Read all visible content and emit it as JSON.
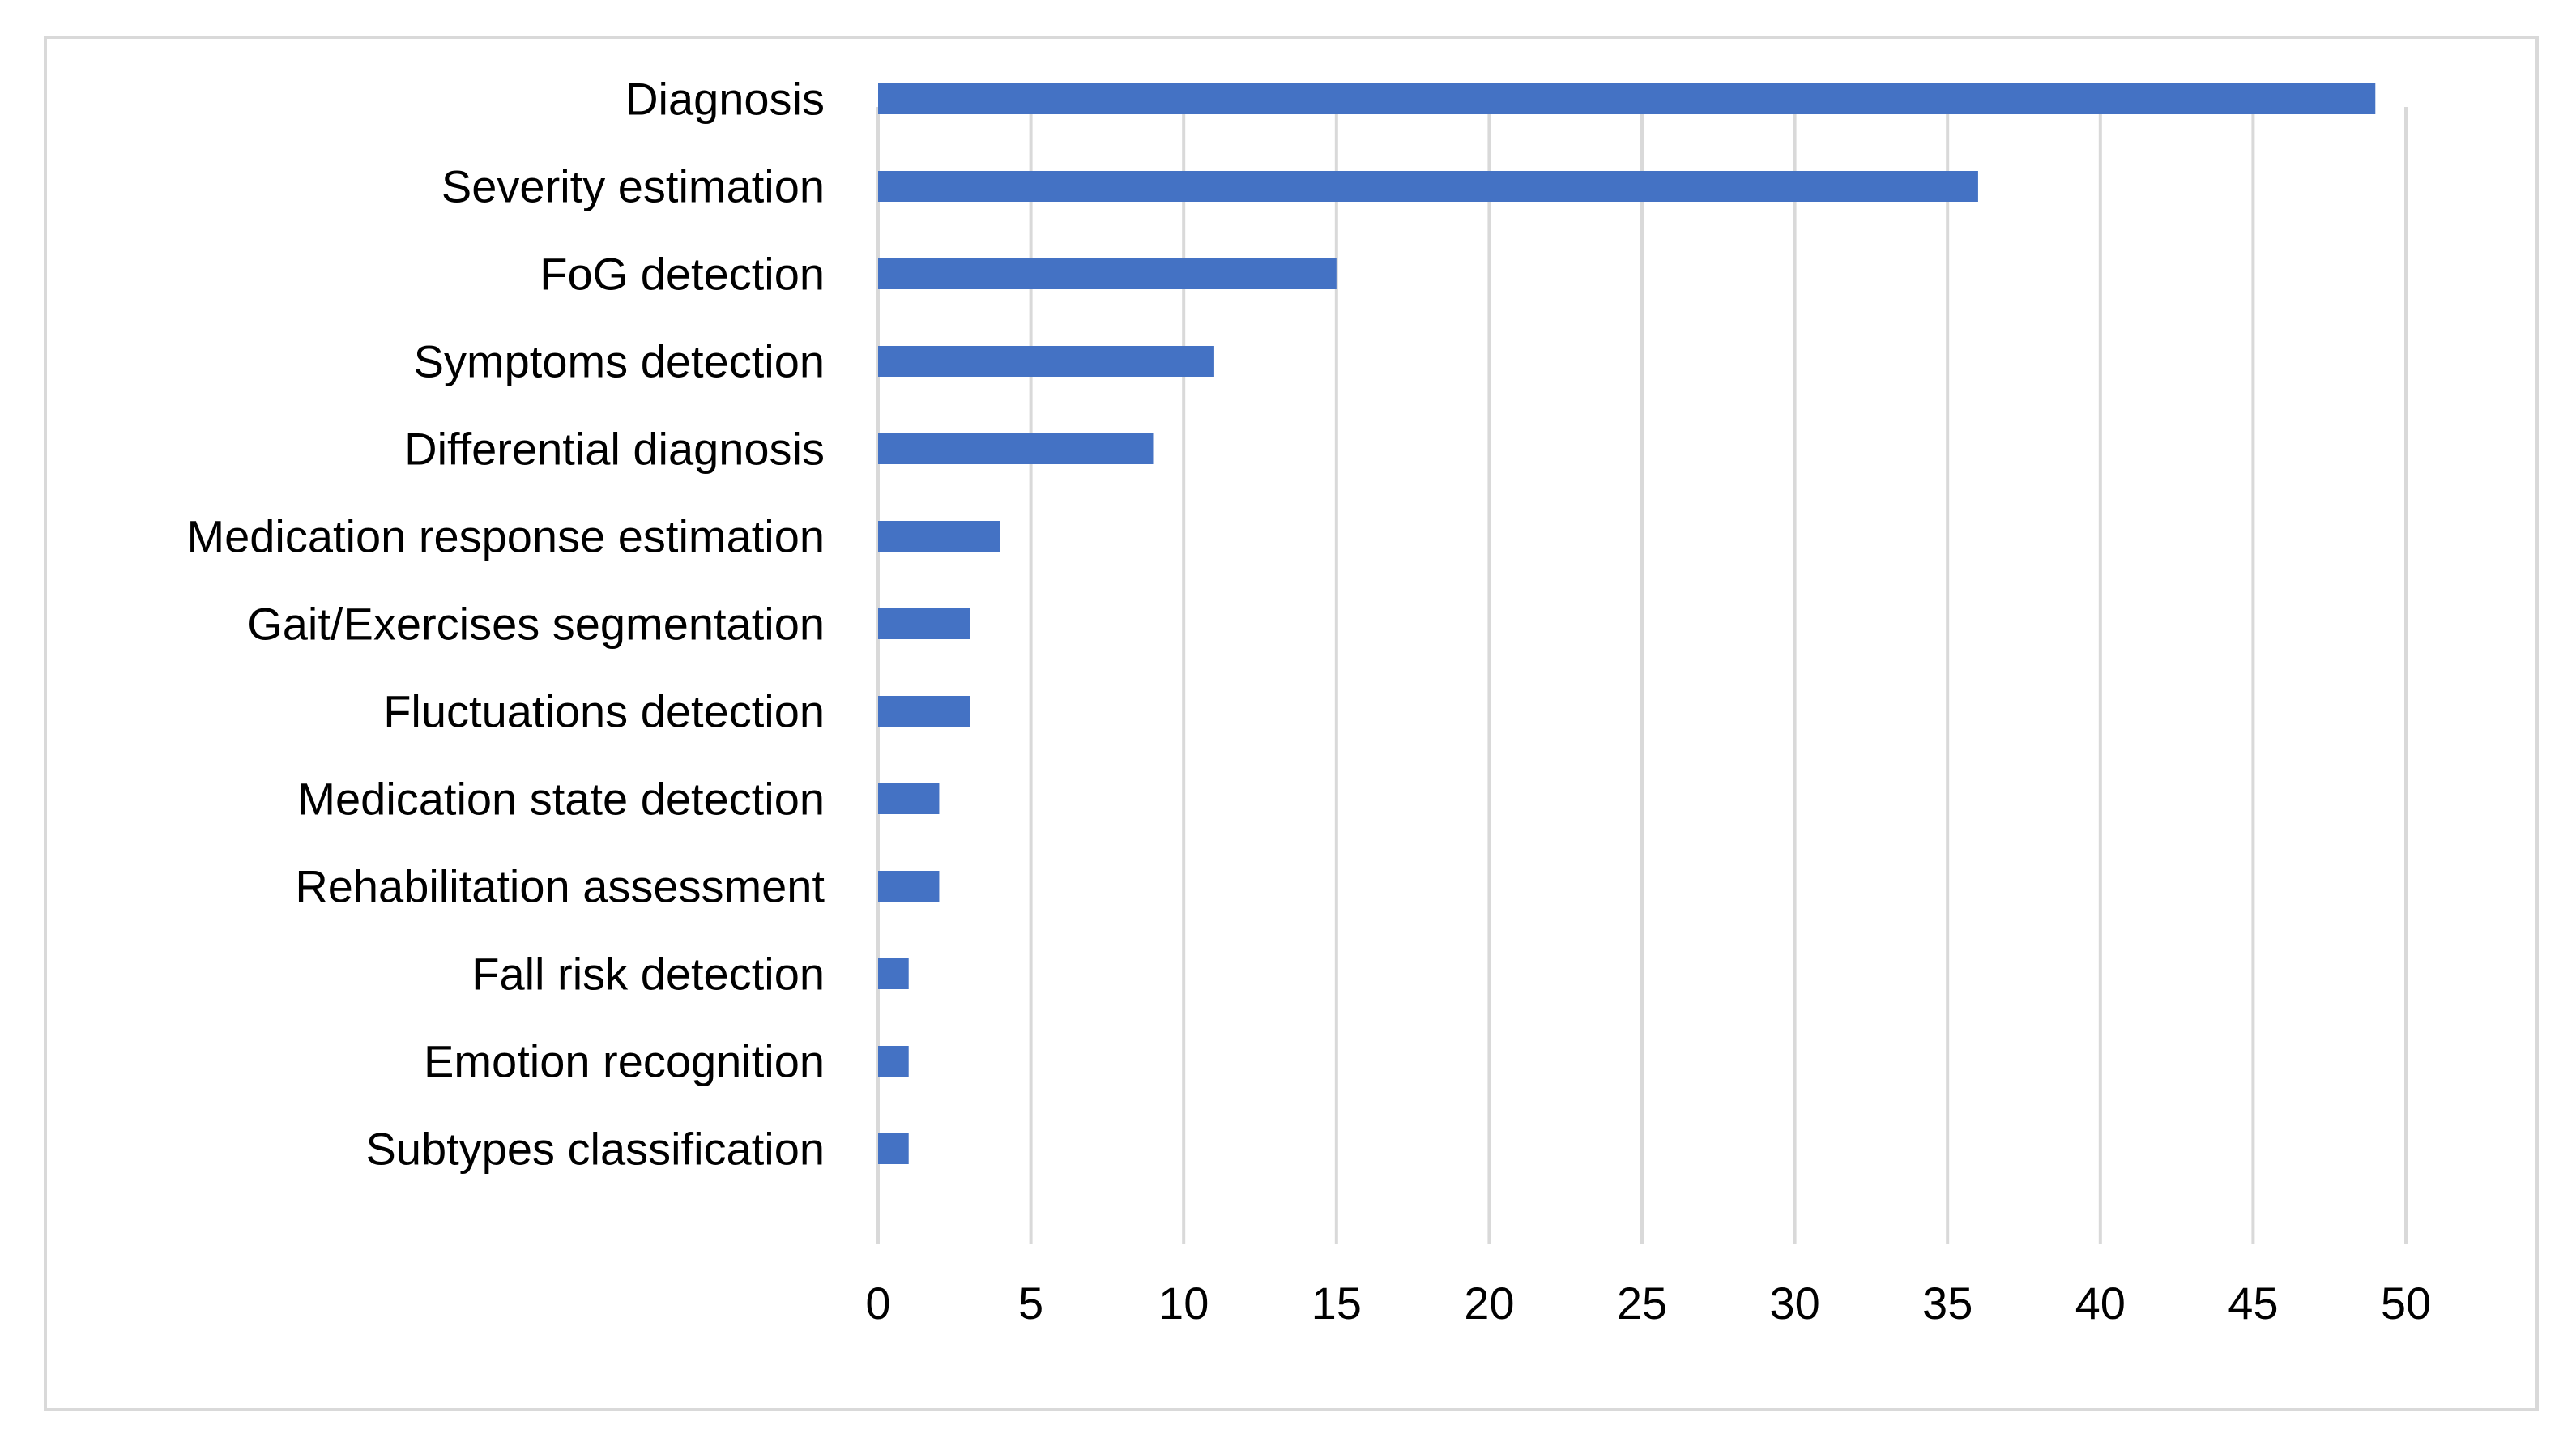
{
  "chart_data": {
    "type": "bar",
    "orientation": "horizontal",
    "title": "",
    "xlabel": "",
    "ylabel": "",
    "categories": [
      "Diagnosis",
      "Severity estimation",
      "FoG detection",
      "Symptoms detection",
      "Differential diagnosis",
      "Medication response estimation",
      "Gait/Exercises segmentation",
      "Fluctuations detection",
      "Medication state detection",
      "Rehabilitation assessment",
      "Fall risk detection",
      "Emotion recognition",
      "Subtypes classification"
    ],
    "values": [
      49,
      36,
      15,
      11,
      9,
      4,
      3,
      3,
      2,
      2,
      1,
      1,
      1
    ],
    "xlim": [
      0,
      50
    ],
    "x_ticks": [
      0,
      5,
      10,
      15,
      20,
      25,
      30,
      35,
      40,
      45,
      50
    ],
    "grid": true,
    "legend": "none",
    "colors": {
      "bar": "#4472c4",
      "grid": "#d9d9d9",
      "border": "#d9d9d9"
    }
  }
}
